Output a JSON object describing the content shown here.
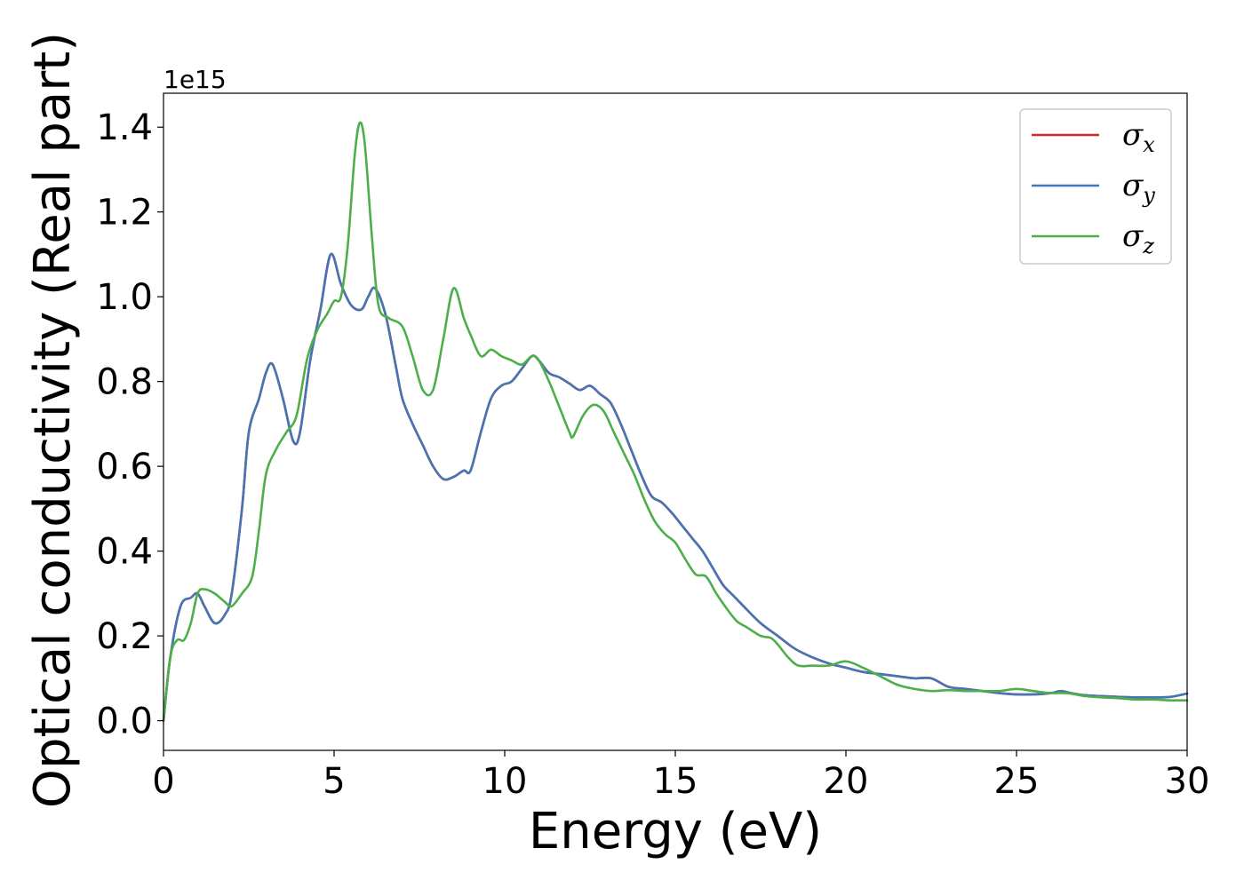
{
  "chart_data": {
    "type": "line",
    "title": "",
    "xlabel": "Energy (eV)",
    "ylabel": "Optical conductivity (Real part)",
    "y_offset_label": "1e15",
    "xlim": [
      0,
      30
    ],
    "ylim": [
      -0.07,
      1.48
    ],
    "xticks": [
      0,
      5,
      10,
      15,
      20,
      25,
      30
    ],
    "xtick_labels": [
      "0",
      "5",
      "10",
      "15",
      "20",
      "25",
      "30"
    ],
    "yticks": [
      0.0,
      0.2,
      0.4,
      0.6,
      0.8,
      1.0,
      1.2,
      1.4
    ],
    "ytick_labels": [
      "0.0",
      "0.2",
      "0.4",
      "0.6",
      "0.8",
      "1.0",
      "1.2",
      "1.4"
    ],
    "grid": false,
    "legend_position": "top-right",
    "series": [
      {
        "name": "σx",
        "symbol": "σ",
        "sub": "x",
        "color": "#d62728",
        "x": [
          0,
          0.2,
          0.5,
          0.8,
          1.0,
          1.2,
          1.5,
          1.8,
          2.0,
          2.3,
          2.5,
          2.8,
          3.0,
          3.2,
          3.5,
          3.8,
          4.0,
          4.3,
          4.6,
          4.9,
          5.2,
          5.5,
          5.8,
          6.0,
          6.2,
          6.5,
          6.8,
          7.0,
          7.3,
          7.6,
          7.9,
          8.2,
          8.5,
          8.8,
          9.0,
          9.3,
          9.6,
          9.9,
          10.2,
          10.5,
          10.8,
          11.0,
          11.3,
          11.6,
          11.9,
          12.2,
          12.5,
          12.8,
          13.1,
          13.4,
          13.7,
          14.0,
          14.3,
          14.6,
          14.9,
          15.2,
          15.5,
          15.8,
          16.1,
          16.4,
          16.7,
          17.0,
          17.5,
          18.0,
          18.5,
          19.0,
          19.5,
          20.0,
          20.5,
          21.0,
          21.5,
          22.0,
          22.5,
          23.0,
          23.5,
          24.0,
          24.5,
          25.0,
          25.5,
          26.0,
          26.3,
          26.6,
          27.0,
          27.5,
          28.0,
          28.5,
          29.0,
          29.5,
          30.0
        ],
        "y": [
          0.0,
          0.15,
          0.27,
          0.29,
          0.3,
          0.27,
          0.23,
          0.25,
          0.3,
          0.5,
          0.68,
          0.76,
          0.82,
          0.84,
          0.76,
          0.66,
          0.68,
          0.85,
          0.97,
          1.1,
          1.03,
          0.98,
          0.97,
          1.0,
          1.02,
          0.96,
          0.84,
          0.76,
          0.7,
          0.65,
          0.6,
          0.57,
          0.575,
          0.59,
          0.59,
          0.68,
          0.76,
          0.79,
          0.8,
          0.83,
          0.86,
          0.85,
          0.82,
          0.81,
          0.795,
          0.78,
          0.79,
          0.77,
          0.75,
          0.7,
          0.64,
          0.58,
          0.53,
          0.515,
          0.49,
          0.46,
          0.43,
          0.4,
          0.36,
          0.32,
          0.295,
          0.27,
          0.23,
          0.2,
          0.17,
          0.15,
          0.135,
          0.125,
          0.115,
          0.11,
          0.105,
          0.1,
          0.1,
          0.08,
          0.075,
          0.07,
          0.065,
          0.062,
          0.062,
          0.065,
          0.07,
          0.065,
          0.06,
          0.058,
          0.056,
          0.055,
          0.055,
          0.056,
          0.064
        ]
      },
      {
        "name": "σy",
        "symbol": "σ",
        "sub": "y",
        "color": "#4575b4",
        "x": [
          0,
          0.2,
          0.5,
          0.8,
          1.0,
          1.2,
          1.5,
          1.8,
          2.0,
          2.3,
          2.5,
          2.8,
          3.0,
          3.2,
          3.5,
          3.8,
          4.0,
          4.3,
          4.6,
          4.9,
          5.2,
          5.5,
          5.8,
          6.0,
          6.2,
          6.5,
          6.8,
          7.0,
          7.3,
          7.6,
          7.9,
          8.2,
          8.5,
          8.8,
          9.0,
          9.3,
          9.6,
          9.9,
          10.2,
          10.5,
          10.8,
          11.0,
          11.3,
          11.6,
          11.9,
          12.2,
          12.5,
          12.8,
          13.1,
          13.4,
          13.7,
          14.0,
          14.3,
          14.6,
          14.9,
          15.2,
          15.5,
          15.8,
          16.1,
          16.4,
          16.7,
          17.0,
          17.5,
          18.0,
          18.5,
          19.0,
          19.5,
          20.0,
          20.5,
          21.0,
          21.5,
          22.0,
          22.5,
          23.0,
          23.5,
          24.0,
          24.5,
          25.0,
          25.5,
          26.0,
          26.3,
          26.6,
          27.0,
          27.5,
          28.0,
          28.5,
          29.0,
          29.5,
          30.0
        ],
        "y": [
          0.0,
          0.15,
          0.27,
          0.29,
          0.3,
          0.27,
          0.23,
          0.25,
          0.3,
          0.5,
          0.68,
          0.76,
          0.82,
          0.84,
          0.76,
          0.66,
          0.68,
          0.85,
          0.97,
          1.1,
          1.03,
          0.98,
          0.97,
          1.0,
          1.02,
          0.96,
          0.84,
          0.76,
          0.7,
          0.65,
          0.6,
          0.57,
          0.575,
          0.59,
          0.59,
          0.68,
          0.76,
          0.79,
          0.8,
          0.83,
          0.86,
          0.85,
          0.82,
          0.81,
          0.795,
          0.78,
          0.79,
          0.77,
          0.75,
          0.7,
          0.64,
          0.58,
          0.53,
          0.515,
          0.49,
          0.46,
          0.43,
          0.4,
          0.36,
          0.32,
          0.295,
          0.27,
          0.23,
          0.2,
          0.17,
          0.15,
          0.135,
          0.125,
          0.115,
          0.11,
          0.105,
          0.1,
          0.1,
          0.08,
          0.075,
          0.07,
          0.065,
          0.062,
          0.062,
          0.065,
          0.07,
          0.065,
          0.06,
          0.058,
          0.056,
          0.055,
          0.055,
          0.056,
          0.064
        ]
      },
      {
        "name": "σz",
        "symbol": "σ",
        "sub": "z",
        "color": "#4daf4a",
        "x": [
          0,
          0.2,
          0.4,
          0.6,
          0.8,
          1.0,
          1.2,
          1.5,
          1.8,
          2.0,
          2.3,
          2.6,
          2.8,
          3.0,
          3.3,
          3.6,
          3.9,
          4.2,
          4.5,
          4.8,
          5.0,
          5.2,
          5.4,
          5.6,
          5.75,
          5.9,
          6.1,
          6.3,
          6.6,
          7.0,
          7.3,
          7.6,
          7.9,
          8.2,
          8.5,
          8.8,
          9.0,
          9.3,
          9.6,
          9.9,
          10.2,
          10.5,
          10.8,
          11.0,
          11.3,
          11.6,
          11.9,
          12.0,
          12.3,
          12.6,
          12.9,
          13.2,
          13.5,
          13.8,
          14.1,
          14.4,
          14.7,
          15.0,
          15.3,
          15.6,
          15.9,
          16.2,
          16.5,
          16.8,
          17.1,
          17.5,
          17.8,
          18.0,
          18.3,
          18.6,
          19.0,
          19.5,
          20.0,
          20.5,
          21.0,
          21.5,
          22.0,
          22.5,
          23.0,
          23.5,
          24.0,
          24.5,
          25.0,
          25.5,
          26.0,
          26.5,
          27.0,
          27.5,
          28.0,
          28.5,
          29.0,
          29.5,
          30.0
        ],
        "y": [
          0.0,
          0.15,
          0.19,
          0.19,
          0.23,
          0.3,
          0.31,
          0.3,
          0.28,
          0.27,
          0.3,
          0.34,
          0.45,
          0.58,
          0.64,
          0.68,
          0.72,
          0.85,
          0.92,
          0.96,
          0.99,
          1.0,
          1.12,
          1.33,
          1.41,
          1.36,
          1.15,
          0.98,
          0.95,
          0.93,
          0.86,
          0.78,
          0.78,
          0.9,
          1.02,
          0.95,
          0.91,
          0.86,
          0.875,
          0.86,
          0.85,
          0.84,
          0.86,
          0.85,
          0.8,
          0.74,
          0.68,
          0.67,
          0.72,
          0.745,
          0.73,
          0.68,
          0.63,
          0.58,
          0.52,
          0.47,
          0.44,
          0.42,
          0.38,
          0.345,
          0.34,
          0.3,
          0.265,
          0.235,
          0.22,
          0.2,
          0.195,
          0.18,
          0.15,
          0.13,
          0.13,
          0.13,
          0.14,
          0.125,
          0.105,
          0.085,
          0.075,
          0.07,
          0.072,
          0.07,
          0.07,
          0.07,
          0.075,
          0.07,
          0.065,
          0.065,
          0.058,
          0.055,
          0.053,
          0.05,
          0.05,
          0.048,
          0.048
        ]
      }
    ]
  }
}
